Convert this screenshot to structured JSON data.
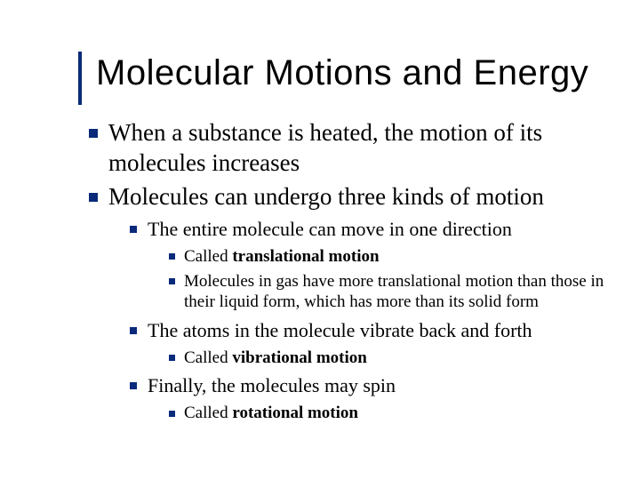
{
  "colors": {
    "accent": "#0a2a7a",
    "background": "#ffffff",
    "text": "#000000"
  },
  "typography": {
    "title_font": "Arial",
    "title_size_pt": 40,
    "body_font": "Times New Roman",
    "lvl1_size_pt": 27,
    "lvl2_size_pt": 22,
    "lvl3_size_pt": 19
  },
  "title": "Molecular Motions and Energy",
  "bullets": {
    "p1": "When a substance is heated, the motion of its molecules increases",
    "p2": "Molecules can undergo three kinds of motion",
    "p2_1": "The entire molecule can move in one direction",
    "p2_1_a_pre": "Called ",
    "p2_1_a_bold": "translational motion",
    "p2_1_b": "Molecules in gas have more translational motion than those in their liquid form, which has more than its solid form",
    "p2_2": "The atoms in the molecule vibrate back and forth",
    "p2_2_a_pre": "Called ",
    "p2_2_a_bold": "vibrational motion",
    "p2_3": "Finally, the molecules may spin",
    "p2_3_a_pre": "Called ",
    "p2_3_a_bold": "rotational motion"
  }
}
